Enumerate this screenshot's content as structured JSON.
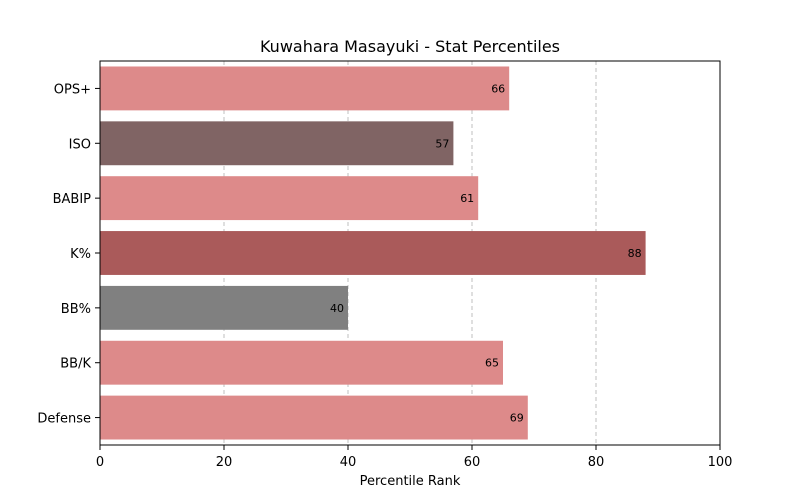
{
  "chart_data": {
    "type": "bar",
    "orientation": "horizontal",
    "title": "Kuwahara Masayuki - Stat Percentiles",
    "xlabel": "Percentile Rank",
    "ylabel": "",
    "xlim": [
      0,
      100
    ],
    "xticks": [
      0,
      20,
      40,
      60,
      80,
      100
    ],
    "grid": "x-dashed",
    "categories": [
      "OPS+",
      "ISO",
      "BABIP",
      "K%",
      "BB%",
      "BB/K",
      "Defense"
    ],
    "values": [
      66,
      57,
      61,
      88,
      40,
      65,
      69
    ],
    "colors": [
      "#dd8a8a",
      "#806464",
      "#dd8a8a",
      "#aa5a5a",
      "#808080",
      "#dd8a8a",
      "#dd8a8a"
    ]
  }
}
